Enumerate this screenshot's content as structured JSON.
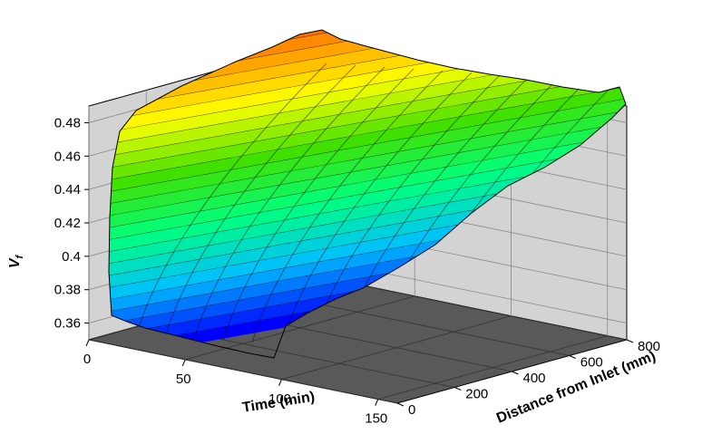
{
  "chart_data": {
    "type": "surface3d",
    "xlabel": "Time (min)",
    "ylabel": "Distance from Inlet (mm)",
    "zlabel": "V_f",
    "xlim": [
      0,
      160
    ],
    "ylim": [
      0,
      800
    ],
    "zlim": [
      0.35,
      0.49
    ],
    "x_ticks": [
      0,
      50,
      100,
      150
    ],
    "y_ticks": [
      0,
      200,
      400,
      600,
      800
    ],
    "z_ticks": [
      0.36,
      0.38,
      0.4,
      0.42,
      0.44,
      0.46,
      0.48
    ],
    "z_tick_labels": [
      "0.36",
      "0.38",
      "0.4",
      "0.42",
      "0.44",
      "0.46",
      "0.48"
    ],
    "color_map": [
      "#0000ff",
      "#00bfff",
      "#00ff80",
      "#40e000",
      "#ffff00",
      "#ff8000",
      "#d00000"
    ],
    "grid": true,
    "surface_samples": {
      "time": [
        0,
        20,
        40,
        60,
        80,
        100
      ],
      "distance": [
        0,
        200,
        400,
        600,
        800
      ],
      "value_at_distance_0": [
        0.357,
        0.356,
        0.355,
        0.355,
        0.355,
        0.355
      ],
      "value_at_distance_800": [
        0.482,
        0.482,
        0.482,
        0.482,
        0.482,
        0.482
      ]
    }
  }
}
